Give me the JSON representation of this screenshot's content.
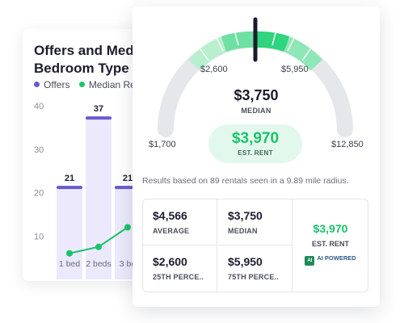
{
  "chart_card": {
    "title_line1": "Offers and Medi",
    "title_line2": "Bedroom Type",
    "legend": [
      {
        "label": "Offers",
        "color": "#6a5acd"
      },
      {
        "label": "Median Re",
        "color": "#18c46a"
      }
    ]
  },
  "chart_data": {
    "type": "bar",
    "title": "Offers and Medi Bedroom Type",
    "categories": [
      "1 bed",
      "2 beds",
      "3 be"
    ],
    "series": [
      {
        "name": "Offers",
        "values": [
          21,
          37,
          21
        ],
        "color": "#6a5acd"
      },
      {
        "name": "Median Re",
        "values": [
          6,
          7.5,
          12
        ],
        "color": "#18c46a"
      }
    ],
    "bar_labels": [
      "21",
      "37",
      "21"
    ],
    "yticks": [
      "40",
      "30",
      "20",
      "10"
    ],
    "ylim": [
      0,
      40
    ],
    "grid": false,
    "legend_position": "top-left"
  },
  "gauge": {
    "min_label": "$1,700",
    "max_label": "$12,850",
    "p25_label": "$2,600",
    "p75_label": "$5,950",
    "median_value": "$3,750",
    "median_label": "MEDIAN",
    "est_rent_value": "$3,970",
    "est_rent_label": "EST. RENT",
    "track_color": "#e6e7ea",
    "band_color": "#2fd47e",
    "needle_color": "#1c1d2b"
  },
  "results_note": "Results based on 89 rentals seen in a 9.89 mile radius.",
  "stats": {
    "average": {
      "value": "$4,566",
      "label": "AVERAGE"
    },
    "median": {
      "value": "$3,750",
      "label": "MEDIAN"
    },
    "p25": {
      "value": "$2,600",
      "label": "25TH PERCE.."
    },
    "p75": {
      "value": "$5,950",
      "label": "75TH PERCE.."
    },
    "est_rent": {
      "value": "$3,970",
      "label": "EST. RENT"
    },
    "ai_chip": "AI",
    "ai_label": "AI POWERED"
  }
}
